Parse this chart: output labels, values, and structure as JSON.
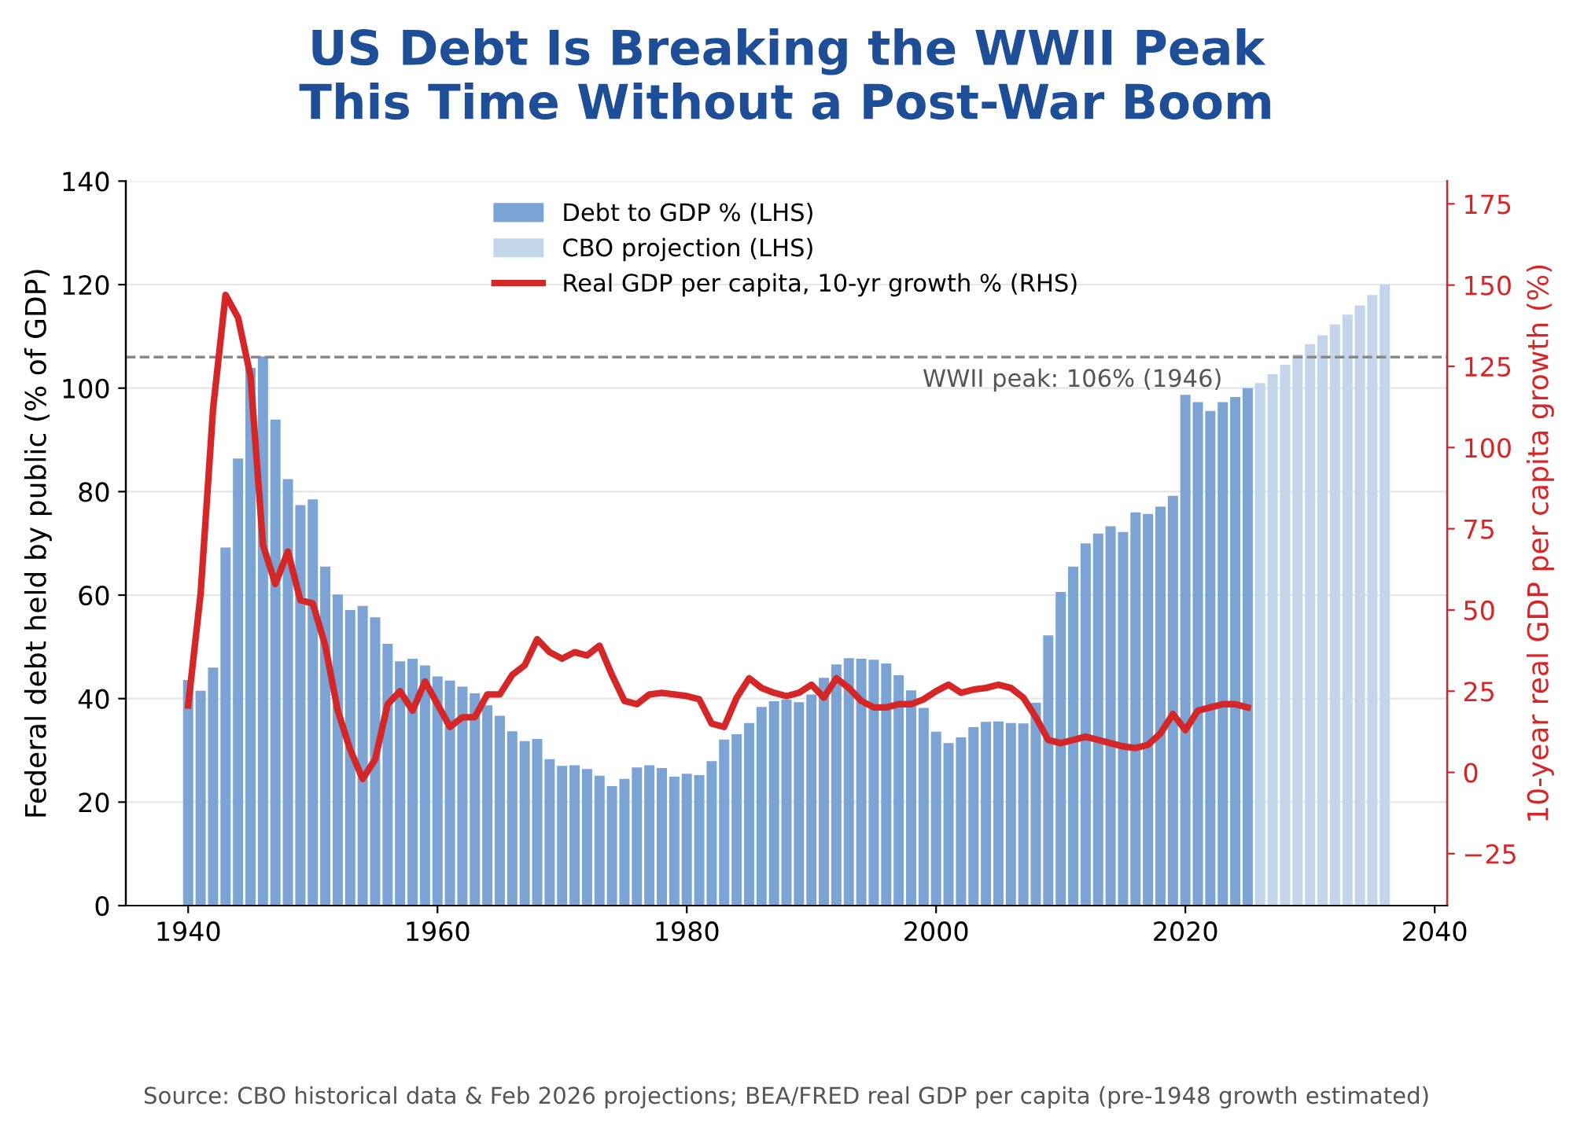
{
  "chart_data": {
    "type": "bar",
    "title": "US Debt Is Breaking the WWII Peak\nThis Time Without a Post-War Boom",
    "ylabel": "Federal debt held by public (% of GDP)",
    "y2label": "10-year real GDP per capita growth (%)",
    "series": [
      {
        "name": "Debt to GDP % (LHS)",
        "color": "#7ba3d4",
        "x": [
          1940,
          1941,
          1942,
          1943,
          1944,
          1945,
          1946,
          1947,
          1948,
          1949,
          1950,
          1951,
          1952,
          1953,
          1954,
          1955,
          1956,
          1957,
          1958,
          1959,
          1960,
          1961,
          1962,
          1963,
          1964,
          1965,
          1966,
          1967,
          1968,
          1969,
          1970,
          1971,
          1972,
          1973,
          1974,
          1975,
          1976,
          1977,
          1978,
          1979,
          1980,
          1981,
          1982,
          1983,
          1984,
          1985,
          1986,
          1987,
          1988,
          1989,
          1990,
          1991,
          1992,
          1993,
          1994,
          1995,
          1996,
          1997,
          1998,
          1999,
          2000,
          2001,
          2002,
          2003,
          2004,
          2005,
          2006,
          2007,
          2008,
          2009,
          2010,
          2011,
          2012,
          2013,
          2014,
          2015,
          2016,
          2017,
          2018,
          2019,
          2020,
          2021,
          2022,
          2023,
          2024,
          2025
        ],
        "values": [
          43.6,
          41.5,
          46,
          69.2,
          86.4,
          103.9,
          106.1,
          93.9,
          82.4,
          77.4,
          78.5,
          65.5,
          60.1,
          57.1,
          57.9,
          55.7,
          50.6,
          47.2,
          47.7,
          46.4,
          44.3,
          43.5,
          42.3,
          41,
          38.7,
          36.7,
          33.7,
          31.8,
          32.2,
          28.3,
          27,
          27.1,
          26.4,
          25.1,
          23.1,
          24.5,
          26.7,
          27.1,
          26.6,
          24.9,
          25.5,
          25.2,
          27.9,
          32.1,
          33.1,
          35.3,
          38.4,
          39.5,
          39.8,
          39.3,
          40.8,
          44,
          46.6,
          47.8,
          47.7,
          47.5,
          46.8,
          44.5,
          41.6,
          38.2,
          33.6,
          31.4,
          32.5,
          34.5,
          35.5,
          35.6,
          35.3,
          35.2,
          39.2,
          52.2,
          60.6,
          65.5,
          70,
          71.9,
          73.3,
          72.2,
          76,
          75.7,
          77.1,
          79.2,
          98.7,
          97.3,
          95.6,
          97.3,
          98.3,
          100
        ]
      },
      {
        "name": "CBO projection (LHS)",
        "color": "#c3d5eb",
        "x": [
          2026,
          2027,
          2028,
          2029,
          2030,
          2031,
          2032,
          2033,
          2034,
          2035,
          2036
        ],
        "values": [
          101,
          102.7,
          104.5,
          106.5,
          108.5,
          110.2,
          112.3,
          114.2,
          116,
          118,
          120
        ]
      },
      {
        "name": "Real GDP per capita, 10-yr growth % (RHS)",
        "type": "line",
        "axis": "y2",
        "color": "#d62728",
        "x": [
          1940,
          1941,
          1942,
          1943,
          1944,
          1945,
          1946,
          1947,
          1948,
          1949,
          1950,
          1951,
          1952,
          1953,
          1954,
          1955,
          1956,
          1957,
          1958,
          1959,
          1960,
          1961,
          1962,
          1963,
          1964,
          1965,
          1966,
          1967,
          1968,
          1969,
          1970,
          1971,
          1972,
          1973,
          1974,
          1975,
          1976,
          1977,
          1978,
          1979,
          1980,
          1981,
          1982,
          1983,
          1984,
          1985,
          1986,
          1987,
          1988,
          1989,
          1990,
          1991,
          1992,
          1993,
          1994,
          1995,
          1996,
          1997,
          1998,
          1999,
          2000,
          2001,
          2002,
          2003,
          2004,
          2005,
          2006,
          2007,
          2008,
          2009,
          2010,
          2011,
          2012,
          2013,
          2014,
          2015,
          2016,
          2017,
          2018,
          2019,
          2020,
          2021,
          2022,
          2023,
          2024,
          2025
        ],
        "values": [
          20.6,
          55,
          112,
          147,
          140,
          122,
          70,
          58,
          68,
          53,
          52,
          39,
          19,
          7,
          -2,
          4,
          21,
          25,
          19,
          28,
          21,
          14,
          17,
          17,
          24,
          24,
          30,
          33,
          41,
          37,
          35,
          37,
          36,
          39,
          30,
          22,
          21,
          24,
          24.5,
          24,
          23.5,
          22.5,
          15,
          14,
          23,
          29,
          26,
          24.5,
          23.5,
          24.5,
          27,
          23,
          29,
          26,
          22,
          20,
          20,
          21,
          21,
          22.5,
          25,
          27,
          24.5,
          25.5,
          26,
          27,
          26,
          23,
          17,
          10,
          9,
          10,
          11,
          10,
          9,
          8,
          7.5,
          8.5,
          12,
          18,
          13,
          19,
          20,
          21,
          21,
          20
        ]
      }
    ],
    "xlim": [
      1935,
      2041
    ],
    "xticks": [
      1940,
      1960,
      1980,
      2000,
      2020,
      2040
    ],
    "ylim": [
      0,
      140
    ],
    "yticks": [
      0,
      20,
      40,
      60,
      80,
      100,
      120,
      140
    ],
    "y2lim": [
      -41,
      182
    ],
    "y2ticks": [
      -25,
      0,
      25,
      50,
      75,
      100,
      125,
      150,
      175
    ],
    "ref_lines": [
      {
        "axis": "y",
        "value": 106,
        "label": "WWII peak: 106% (1946)",
        "color": "#888888",
        "line_style": "dashed"
      }
    ],
    "annotations": [
      "Source: CBO historical data & Feb 2026 projections; BEA/FRED real GDP per capita (pre-1948 growth estimated)"
    ],
    "grid": "y",
    "legend": "top"
  }
}
